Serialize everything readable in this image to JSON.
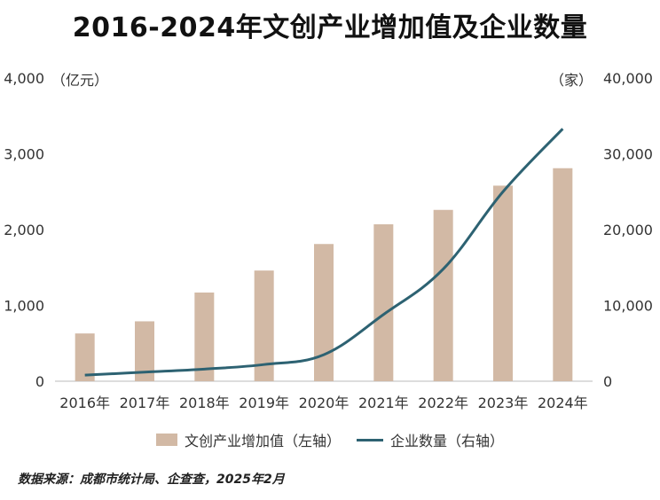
{
  "title": "2016-2024年文创产业增加值及企业数量",
  "left_unit": "（亿元）",
  "right_unit": "（家）",
  "source": "数据来源：成都市统计局、企查查，2025年2月",
  "colors": {
    "bar": "#d2b9a5",
    "line": "#2d6272"
  },
  "chart_data": {
    "type": "bar",
    "categories": [
      "2016年",
      "2017年",
      "2018年",
      "2019年",
      "2020年",
      "2021年",
      "2022年",
      "2023年",
      "2024年"
    ],
    "series": [
      {
        "name": "文创产业增加值（左轴）",
        "type": "bar",
        "axis": "left",
        "values": [
          630,
          790,
          1170,
          1460,
          1810,
          2070,
          2260,
          2580,
          2810
        ]
      },
      {
        "name": "企业数量（右轴）",
        "type": "line",
        "axis": "right",
        "values": [
          800,
          1200,
          1600,
          2200,
          3500,
          8800,
          14800,
          25000,
          33300
        ]
      }
    ],
    "left_ylim": [
      0,
      4000
    ],
    "right_ylim": [
      0,
      40000
    ],
    "left_ticks": [
      "0",
      "1,000",
      "2,000",
      "3,000",
      "4,000"
    ],
    "right_ticks": [
      "0",
      "10,000",
      "20,000",
      "30,000",
      "40,000"
    ],
    "grid": false,
    "legend_position": "bottom"
  }
}
